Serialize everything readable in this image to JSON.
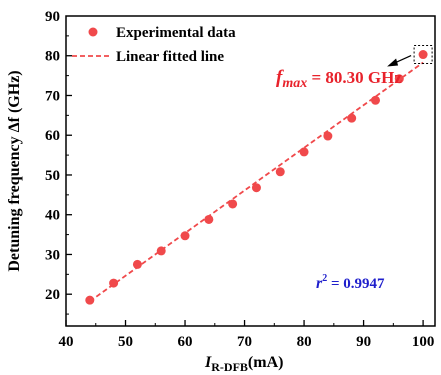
{
  "chart_data": {
    "type": "scatter",
    "xlabel_main": "I",
    "xlabel_sub": "R-DFB",
    "xlabel_unit": "(mA)",
    "ylabel": "Detuning frequency Δf (GHz)",
    "xlim": [
      40,
      102
    ],
    "ylim": [
      12,
      90
    ],
    "x_ticks": [
      40,
      50,
      60,
      70,
      80,
      90,
      100
    ],
    "y_ticks": [
      20,
      30,
      40,
      50,
      60,
      70,
      80,
      90
    ],
    "grid": false,
    "legend_position": "top-left",
    "series": [
      {
        "name": "Experimental data",
        "style": "markers",
        "color": "#f0494b",
        "x": [
          44,
          48,
          52,
          56,
          60,
          64,
          68,
          72,
          76,
          80,
          84,
          88,
          92,
          96,
          100
        ],
        "y": [
          18.5,
          22.8,
          27.5,
          30.9,
          34.7,
          38.8,
          42.7,
          46.8,
          50.8,
          55.8,
          59.8,
          64.3,
          68.8,
          74.2,
          80.3
        ]
      },
      {
        "name": "Linear fitted line",
        "style": "dashed",
        "color": "#f0494b",
        "x": [
          44,
          100
        ],
        "y": [
          18.2,
          78.3
        ]
      }
    ],
    "annotations": {
      "fmax_symbol": "f",
      "fmax_sub": "max",
      "fmax_value": " = 80.30 GHz",
      "fmax_color": "#e8222b",
      "r2_symbol": "r",
      "r2_sup": "2",
      "r2_value": " = 0.9947",
      "r2_color": "#1f1fcc",
      "highlight_point": {
        "x": 100,
        "y": 80.3
      }
    }
  }
}
